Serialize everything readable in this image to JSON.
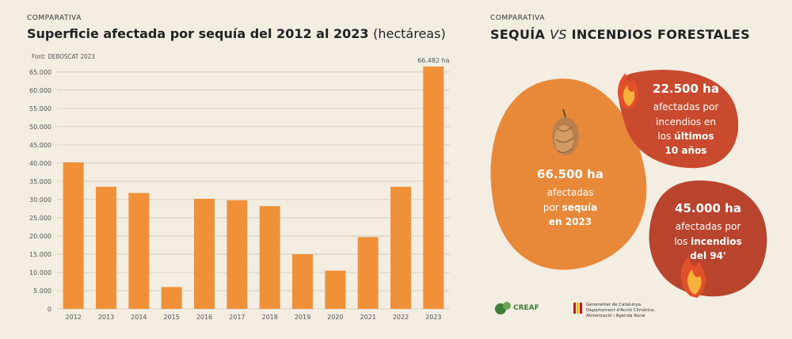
{
  "left": {
    "kicker": "COMPARATIVA",
    "title_main": "Superficie afectada por sequía del 2012 al 2023",
    "title_unit": "(hectáreas)",
    "source": "Font: DEBOSCAT 2023"
  },
  "right": {
    "kicker": "COMPARATIVA",
    "title_a": "SEQUÍA",
    "title_vs": "VS",
    "title_b": "INCENDIOS FORESTALES",
    "drought": {
      "value": "66.500 ha",
      "l1": "afectadas",
      "l2a": "por ",
      "l2b": "sequía",
      "l3": "en 2023"
    },
    "fires_recent": {
      "value": "22.500 ha",
      "l1": "afectadas por",
      "l2": "incendios en",
      "l3a": "los ",
      "l3b": "últimos",
      "l4": "10 años"
    },
    "fires_94": {
      "value": "45.000 ha",
      "l1": "afectadas por",
      "l2a": "los ",
      "l2b": "incendios",
      "l3": "del 94'"
    },
    "logo_creaf": "CREAF",
    "logo_gen_1": "Generalitat de Catalunya",
    "logo_gen_2": "Departament d'Acció Climàtica,",
    "logo_gen_3": "Alimentació i Agenda Rural"
  },
  "colors": {
    "bar": "#f0913a",
    "background": "#f3ede2",
    "blob_orange": "#e8893a",
    "blob_red": "#c94a2e",
    "blob_darkred": "#b8442e"
  },
  "chart_data": {
    "type": "bar",
    "categories": [
      "2012",
      "2013",
      "2014",
      "2015",
      "2016",
      "2017",
      "2018",
      "2019",
      "2020",
      "2021",
      "2022",
      "2023"
    ],
    "values": [
      40200,
      33500,
      31800,
      6000,
      30200,
      29800,
      28200,
      15000,
      10500,
      19700,
      33500,
      66482
    ],
    "y_ticks": [
      "0",
      "5.000",
      "10.000",
      "15.000",
      "20.000",
      "25.000",
      "30.000",
      "35.000",
      "40.000",
      "45.000",
      "50.000",
      "55.000",
      "60.000",
      "65.000"
    ],
    "y_tick_values": [
      0,
      5000,
      10000,
      15000,
      20000,
      25000,
      30000,
      35000,
      40000,
      45000,
      50000,
      55000,
      60000,
      65000
    ],
    "ylim": [
      0,
      68000
    ],
    "annotation": "66.482 ha",
    "grid": true
  }
}
